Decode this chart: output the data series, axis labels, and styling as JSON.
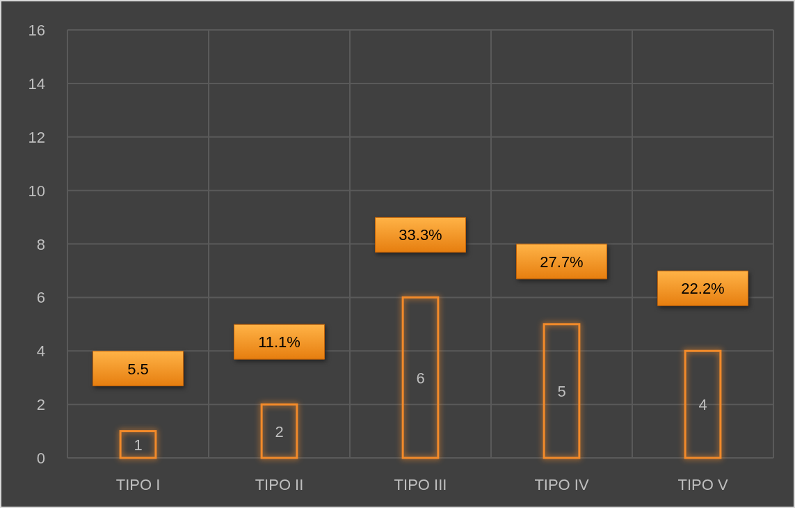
{
  "chart_data": {
    "type": "bar",
    "categories": [
      "TIPO I",
      "TIPO II",
      "TIPO III",
      "TIPO IV",
      "TIPO V"
    ],
    "values": [
      1,
      2,
      6,
      5,
      4
    ],
    "color": "#f28a2a",
    "ylim": [
      0,
      16
    ],
    "yticks": [
      0,
      2,
      4,
      6,
      8,
      10,
      12,
      14,
      16
    ],
    "grid": true,
    "data_labels": true,
    "annotations": [
      "5.5",
      "11.1%",
      "33.3%",
      "27.7%",
      "22.2%"
    ]
  }
}
